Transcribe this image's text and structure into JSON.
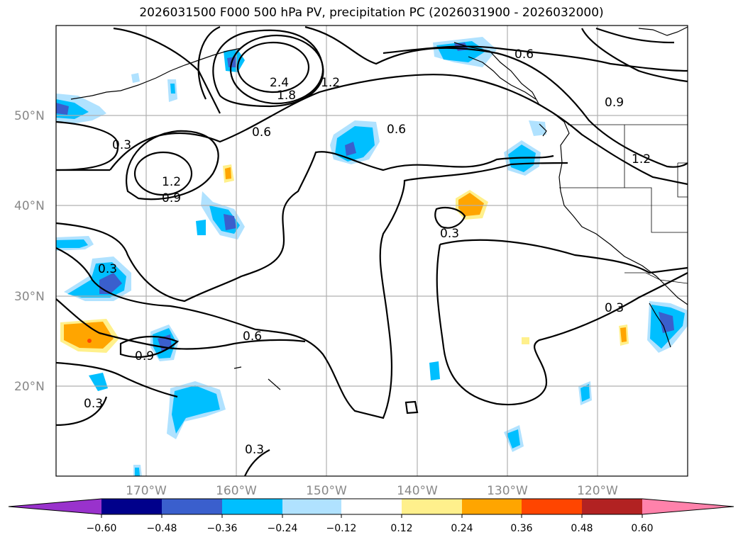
{
  "title": "2026031500 F000 500 hPa PV, precipitation PC (2026031900 - 2026032000)",
  "lat_labels": [
    "50°N",
    "40°N",
    "30°N",
    "20°N"
  ],
  "lon_labels": [
    "170°W",
    "160°W",
    "150°W",
    "140°W",
    "130°W",
    "120°W"
  ],
  "contour_labels": [
    "2.4",
    "1.8",
    "1.2",
    "0.6",
    "0.6",
    "0.9",
    "0.3",
    "1.2",
    "0.9",
    "1.2",
    "0.6",
    "0.3",
    "0.3",
    "0.3",
    "0.6",
    "0.9",
    "0.3",
    "0.3"
  ],
  "colorbar": {
    "ticks": [
      "−0.60",
      "−0.48",
      "−0.36",
      "−0.24",
      "−0.12",
      "0.12",
      "0.24",
      "0.36",
      "0.48",
      "0.60"
    ],
    "colors": [
      "#9932cc",
      "#00008b",
      "#3a5fcd",
      "#00bfff",
      "#b0e2ff",
      "#ffffff",
      "#fff08c",
      "#ffa500",
      "#ff4500",
      "#b22222",
      "#ff82ab"
    ]
  },
  "map_extent": {
    "lon_min": -180,
    "lon_max": -110,
    "lat_min": 10,
    "lat_max": 60
  }
}
